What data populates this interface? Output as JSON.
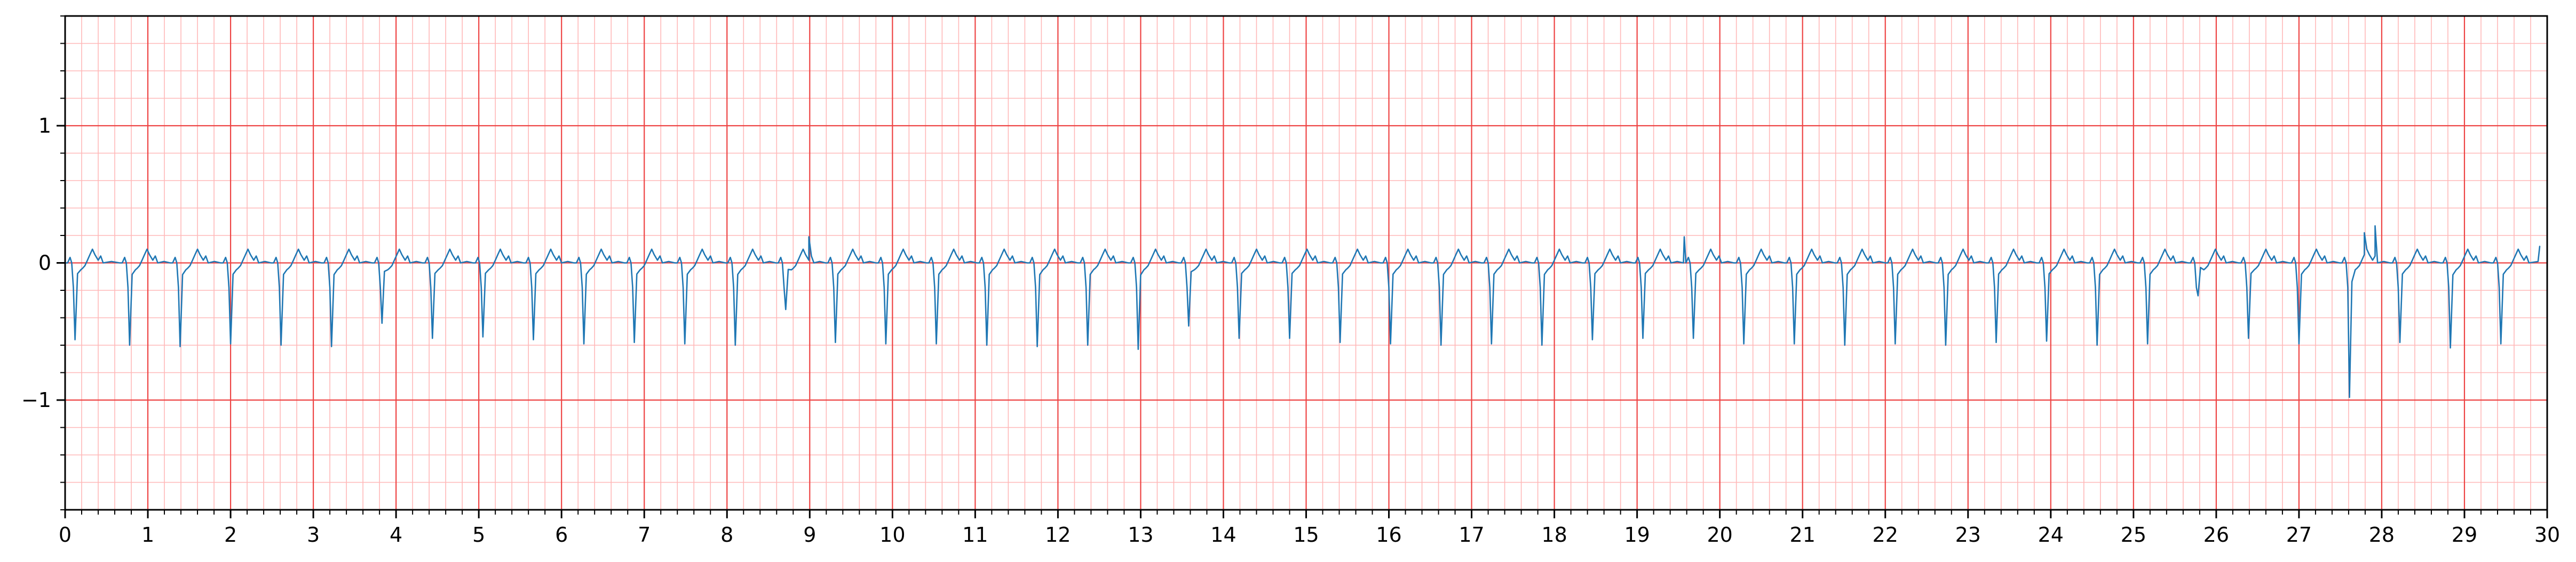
{
  "chart_data": {
    "type": "line",
    "title": "",
    "xlabel": "",
    "ylabel": "",
    "xlim": [
      0,
      30
    ],
    "ylim": [
      -1.8,
      1.8
    ],
    "grid": true,
    "legend": "none",
    "x_ticks": [
      "0",
      "1",
      "2",
      "3",
      "4",
      "5",
      "6",
      "7",
      "8",
      "9",
      "10",
      "11",
      "12",
      "13",
      "14",
      "15",
      "16",
      "17",
      "18",
      "19",
      "20",
      "21",
      "22",
      "23",
      "24",
      "25",
      "26",
      "27",
      "28",
      "29",
      "30"
    ],
    "y_ticks": [
      {
        "value": 1,
        "label": "1"
      },
      {
        "value": 0,
        "label": "0"
      },
      {
        "value": -1,
        "label": "−1"
      }
    ],
    "series": [
      {
        "color": "#1f77b4",
        "sampling": "beat template repeated at each beat onset (time in s, amplitude in mV)",
        "beat_template": {
          "t": [
            0.0,
            0.03,
            0.06,
            0.08,
            0.1,
            0.12,
            0.15,
            0.19,
            0.21,
            0.24,
            0.27,
            0.3,
            0.33,
            0.36,
            0.4,
            0.43,
            0.46
          ],
          "v": [
            0.0,
            0.0,
            0.04,
            0.0,
            -0.18,
            -0.58,
            -0.08,
            -0.05,
            -0.04,
            -0.02,
            0.02,
            0.06,
            0.1,
            0.06,
            0.02,
            0.05,
            0.0
          ]
        },
        "beats": [
          {
            "t0": 0.0,
            "amp": -0.56
          },
          {
            "t0": 0.66,
            "amp": -0.6
          },
          {
            "t0": 1.27,
            "amp": -0.61
          },
          {
            "t0": 1.88,
            "amp": -0.59
          },
          {
            "t0": 2.49,
            "amp": -0.6
          },
          {
            "t0": 3.1,
            "amp": -0.61
          },
          {
            "t0": 3.71,
            "amp": -0.44
          },
          {
            "t0": 4.32,
            "amp": -0.55
          },
          {
            "t0": 4.93,
            "amp": -0.54
          },
          {
            "t0": 5.54,
            "amp": -0.56
          },
          {
            "t0": 6.15,
            "amp": -0.59
          },
          {
            "t0": 6.76,
            "amp": -0.58
          },
          {
            "t0": 7.37,
            "amp": -0.59
          },
          {
            "t0": 7.98,
            "amp": -0.6
          },
          {
            "t0": 8.59,
            "amp": -0.34
          },
          {
            "t0": 9.19,
            "amp": -0.58
          },
          {
            "t0": 9.8,
            "amp": -0.59
          },
          {
            "t0": 10.41,
            "amp": -0.59
          },
          {
            "t0": 11.02,
            "amp": -0.6
          },
          {
            "t0": 11.63,
            "amp": -0.61
          },
          {
            "t0": 12.24,
            "amp": -0.6
          },
          {
            "t0": 12.85,
            "amp": -0.63
          },
          {
            "t0": 13.46,
            "amp": -0.46
          },
          {
            "t0": 14.07,
            "amp": -0.55
          },
          {
            "t0": 14.68,
            "amp": -0.55
          },
          {
            "t0": 15.29,
            "amp": -0.58
          },
          {
            "t0": 15.9,
            "amp": -0.59
          },
          {
            "t0": 16.51,
            "amp": -0.6
          },
          {
            "t0": 17.12,
            "amp": -0.59
          },
          {
            "t0": 17.73,
            "amp": -0.6
          },
          {
            "t0": 18.34,
            "amp": -0.56
          },
          {
            "t0": 18.95,
            "amp": -0.55
          },
          {
            "t0": 19.56,
            "amp": -0.55
          },
          {
            "t0": 20.17,
            "amp": -0.59
          },
          {
            "t0": 20.78,
            "amp": -0.59
          },
          {
            "t0": 21.39,
            "amp": -0.6
          },
          {
            "t0": 22.0,
            "amp": -0.59
          },
          {
            "t0": 22.61,
            "amp": -0.6
          },
          {
            "t0": 23.22,
            "amp": -0.58
          },
          {
            "t0": 23.83,
            "amp": -0.57
          },
          {
            "t0": 24.44,
            "amp": -0.6
          },
          {
            "t0": 25.05,
            "amp": -0.59
          },
          {
            "t0": 25.66,
            "amp": -0.24
          },
          {
            "t0": 26.27,
            "amp": -0.55
          },
          {
            "t0": 26.88,
            "amp": -0.59
          },
          {
            "t0": 27.49,
            "amp": -0.98
          },
          {
            "t0": 28.1,
            "amp": -0.58
          },
          {
            "t0": 28.71,
            "amp": -0.62
          },
          {
            "t0": 29.32,
            "amp": -0.59
          }
        ],
        "annotations": [
          {
            "x": 8.99,
            "y": 0.19
          },
          {
            "x": 19.57,
            "y": 0.19
          },
          {
            "x": 27.79,
            "y": 0.22
          },
          {
            "x": 27.92,
            "y": 0.27
          },
          {
            "x": 29.91,
            "y": 0.12
          }
        ]
      }
    ]
  }
}
